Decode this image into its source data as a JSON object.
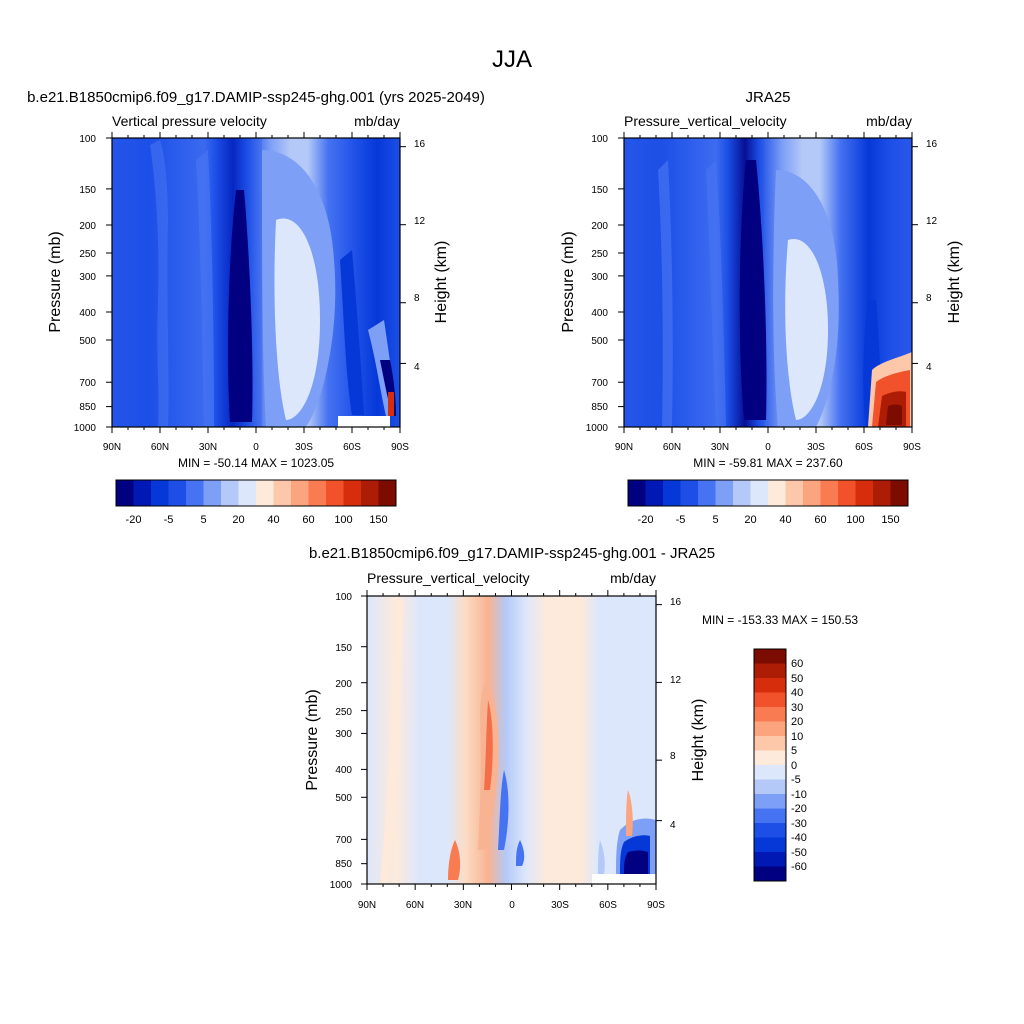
{
  "figure": {
    "title": "JJA"
  },
  "chart_data": [
    {
      "type": "heatmap",
      "panel": "top-left",
      "title": "b.e21.B1850cmip6.f09_g17.DAMIP-ssp245-ghg.001 (yrs 2025-2049)",
      "left_label": "Vertical pressure velocity",
      "right_label": "mb/day",
      "ylabel": "Pressure (mb)",
      "ylabel_right": "Height (km)",
      "x_ticks": [
        "90N",
        "60N",
        "30N",
        "0",
        "30S",
        "60S",
        "90S"
      ],
      "y_ticks": [
        "100",
        "150",
        "200",
        "250",
        "300",
        "400",
        "500",
        "700",
        "850",
        "1000"
      ],
      "y_ticks_right": [
        "16",
        "12",
        "8",
        "4"
      ],
      "x_range": [
        90,
        -90
      ],
      "y_range": [
        100,
        1000
      ],
      "y_scale": "log",
      "stats": "MIN = -50.14  MAX = 1023.05",
      "colorbar": {
        "orientation": "horizontal",
        "labels": [
          "-20",
          "-5",
          "5",
          "20",
          "40",
          "60",
          "100",
          "150"
        ],
        "colors": [
          "#000080",
          "#0019b5",
          "#0538d7",
          "#1d4fe7",
          "#4673f2",
          "#7d9ff6",
          "#b4c9f8",
          "#dde7fb",
          "#fdeadb",
          "#fcc8a9",
          "#fba47d",
          "#f87b51",
          "#f2522b",
          "#d62e0d",
          "#ad1d05",
          "#7c0b00"
        ]
      }
    },
    {
      "type": "heatmap",
      "panel": "top-right",
      "title": "JRA25",
      "left_label": "Pressure_vertical_velocity",
      "right_label": "mb/day",
      "ylabel": "Pressure (mb)",
      "ylabel_right": "Height (km)",
      "x_ticks": [
        "90N",
        "60N",
        "30N",
        "0",
        "30S",
        "60S",
        "90S"
      ],
      "y_ticks": [
        "100",
        "150",
        "200",
        "250",
        "300",
        "400",
        "500",
        "700",
        "850",
        "1000"
      ],
      "y_ticks_right": [
        "16",
        "12",
        "8",
        "4"
      ],
      "x_range": [
        90,
        -90
      ],
      "y_range": [
        100,
        1000
      ],
      "y_scale": "log",
      "stats": "MIN = -59.81  MAX = 237.60",
      "colorbar": {
        "orientation": "horizontal",
        "labels": [
          "-20",
          "-5",
          "5",
          "20",
          "40",
          "60",
          "100",
          "150"
        ],
        "colors": [
          "#000080",
          "#0019b5",
          "#0538d7",
          "#1d4fe7",
          "#4673f2",
          "#7d9ff6",
          "#b4c9f8",
          "#dde7fb",
          "#fdeadb",
          "#fcc8a9",
          "#fba47d",
          "#f87b51",
          "#f2522b",
          "#d62e0d",
          "#ad1d05",
          "#7c0b00"
        ]
      }
    },
    {
      "type": "heatmap",
      "panel": "bottom",
      "title": "b.e21.B1850cmip6.f09_g17.DAMIP-ssp245-ghg.001 - JRA25",
      "left_label": "Pressure_vertical_velocity",
      "right_label": "mb/day",
      "ylabel": "Pressure (mb)",
      "ylabel_right": "Height (km)",
      "x_ticks": [
        "90N",
        "60N",
        "30N",
        "0",
        "30S",
        "60S",
        "90S"
      ],
      "y_ticks": [
        "100",
        "150",
        "200",
        "250",
        "300",
        "400",
        "500",
        "700",
        "850",
        "1000"
      ],
      "y_ticks_right": [
        "16",
        "12",
        "8",
        "4"
      ],
      "x_range": [
        90,
        -90
      ],
      "y_range": [
        100,
        1000
      ],
      "y_scale": "log",
      "stats": "MIN = -153.33  MAX = 150.53",
      "colorbar": {
        "orientation": "vertical",
        "labels": [
          "60",
          "50",
          "40",
          "30",
          "20",
          "10",
          "5",
          "0",
          "-5",
          "-10",
          "-20",
          "-30",
          "-40",
          "-50",
          "-60"
        ],
        "colors": [
          "#7c0b00",
          "#ad1d05",
          "#d62e0d",
          "#f2522b",
          "#f87b51",
          "#fba47d",
          "#fcc8a9",
          "#fdeadb",
          "#dde7fb",
          "#b4c9f8",
          "#7d9ff6",
          "#4673f2",
          "#1d4fe7",
          "#0538d7",
          "#0019b5",
          "#000080"
        ]
      }
    }
  ]
}
